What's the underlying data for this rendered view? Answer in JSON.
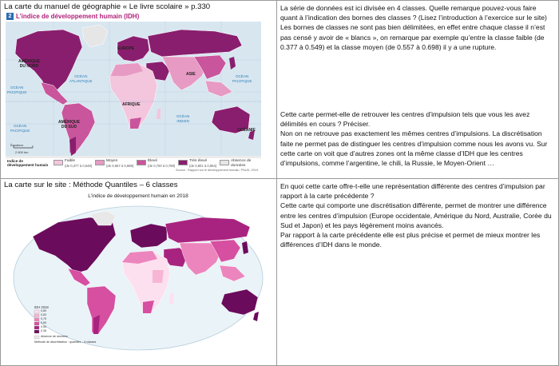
{
  "cells": {
    "r1_caption": "La carte du manuel de géographie « Le livre scolaire » p.330",
    "r1_text": [
      "La série de données est ici divisée en 4 classes. Quelle remarque pouvez-vous faire quant à l’indication des bornes des classes ? (Lisez l’introduction à l’exercice sur le site)",
      "Les bornes de classes ne sont pas bien délimitées, en effet entre chaque classe il n’est pas censé y avoir de « blancs », on remarque par exemple qu’entre la classe faible (de 0.377 à 0.549) et la classe moyen (de 0.557 à 0.698) il y a une rupture."
    ],
    "r1_text2": [
      "Cette carte permet-elle de retrouver les centres d’impulsion tels que vous les avez délimités en cours ? Préciser.",
      "Non on ne retrouve pas exactement les mêmes centres d’impulsions. La discrétisation faite ne permet pas de distinguer les centres d’impulsion comme nous les avons vu. Sur cette carte on voit que d’autres zones ont la même classe d’IDH que les centres d’impulsions, comme l’argentine, le chili, la Russie, le Moyen-Orient …"
    ],
    "r2_caption": "La carte sur le site : Méthode Quantiles – 6 classes",
    "r2_text": [
      "En quoi cette carte offre-t-elle une représentation différente des centres d’impulsion par rapport à la carte précédente ?",
      "Cette carte qui comporte une discrétisation différente, permet de montrer une différence entre les centres d’impulsion (Europe occidentale, Amérique du Nord, Australie, Corée du Sud et Japon) et les pays légèrement moins avancés.",
      "Par rapport à la carte précédente elle est plus précise et permet de mieux montrer les différences d’IDH dans le monde."
    ]
  },
  "map1": {
    "number": "2",
    "title": "L’indice de développement humain (IDH)",
    "labels": {
      "europe": "EUROPE",
      "namerica": "AMÉRIQUE\nDU NORD",
      "asie": "ASIE",
      "afrique": "AFRIQUE",
      "samerica": "AMÉRIQUE\nDU SUD",
      "oceanie": "OCÉANIE",
      "atl": "OCÉAN\nATLANTIQUE",
      "pac1": "OCÉAN\nPACIFIQUE",
      "pac2": "OCÉAN\nPACIFIQUE",
      "pac3": "OCÉAN\nPACIFIQUE",
      "indien": "OCÉAN\nINDIEN",
      "equator": "Équateur",
      "scale": "2 600 km"
    },
    "legend_title": "Indice de développement humain",
    "legend": [
      {
        "label": "Faible",
        "range": "(de 0,377 à 0,549)",
        "color": "#f3c6dd"
      },
      {
        "label": "Moyen",
        "range": "(de 0,557 à 0,698)",
        "color": "#e79ac3"
      },
      {
        "label": "Élevé",
        "range": "(de 0,700 à 0,799)",
        "color": "#c9559c"
      },
      {
        "label": "Très élevé",
        "range": "(de 0,801 à 0,954)",
        "color": "#8a1e6e"
      },
      {
        "label": "Absence de données",
        "range": "",
        "color": "#e6e6e6"
      }
    ],
    "source": "Source : Rapport sur le développement humain, PNUD, 2019."
  },
  "map2": {
    "title": "L’indice de développement humain en 2018",
    "legend_title": "IDH 2018",
    "legend_colors": [
      "#fde0ef",
      "#f7b6d6",
      "#ec85bd",
      "#d64fa0",
      "#a8237f",
      "#6b0b5c"
    ],
    "legend_values": [
      "0,89",
      "0,83",
      "0,75",
      "0,65",
      "0,55",
      "0,38"
    ],
    "note": "Absence de données",
    "method": "Méthode de discrétisation : quantiles – 6 classes"
  }
}
